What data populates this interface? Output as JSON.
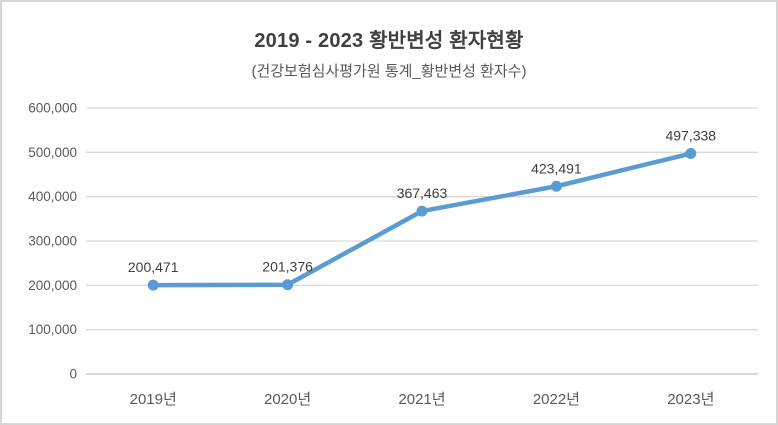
{
  "chart_data": {
    "type": "line",
    "title": "2019 - 2023 황반변성 환자현황",
    "subtitle": "(건강보험심사평가원 통계_황반변성 환자수)",
    "categories": [
      "2019년",
      "2020년",
      "2021년",
      "2022년",
      "2023년"
    ],
    "values": [
      200471,
      201376,
      367463,
      423491,
      497338
    ],
    "value_labels": [
      "200,471",
      "201,376",
      "367,463",
      "423,491",
      "497,338"
    ],
    "xlabel": "",
    "ylabel": "",
    "ylim": [
      0,
      600000
    ],
    "ytick_step": 100000,
    "ytick_labels": [
      "0",
      "100,000",
      "200,000",
      "300,000",
      "400,000",
      "500,000",
      "600,000"
    ],
    "grid": true,
    "legend": false,
    "colors": {
      "line": "#5B9BD5",
      "marker": "#5B9BD5",
      "data_label": "#404040",
      "axis_label": "#595959",
      "gridline": "#d9d9d9",
      "axis_line": "#bfbfbf",
      "title": "#404040",
      "subtitle": "#595959",
      "border": "#d6d6d6",
      "background": "#ffffff"
    }
  }
}
